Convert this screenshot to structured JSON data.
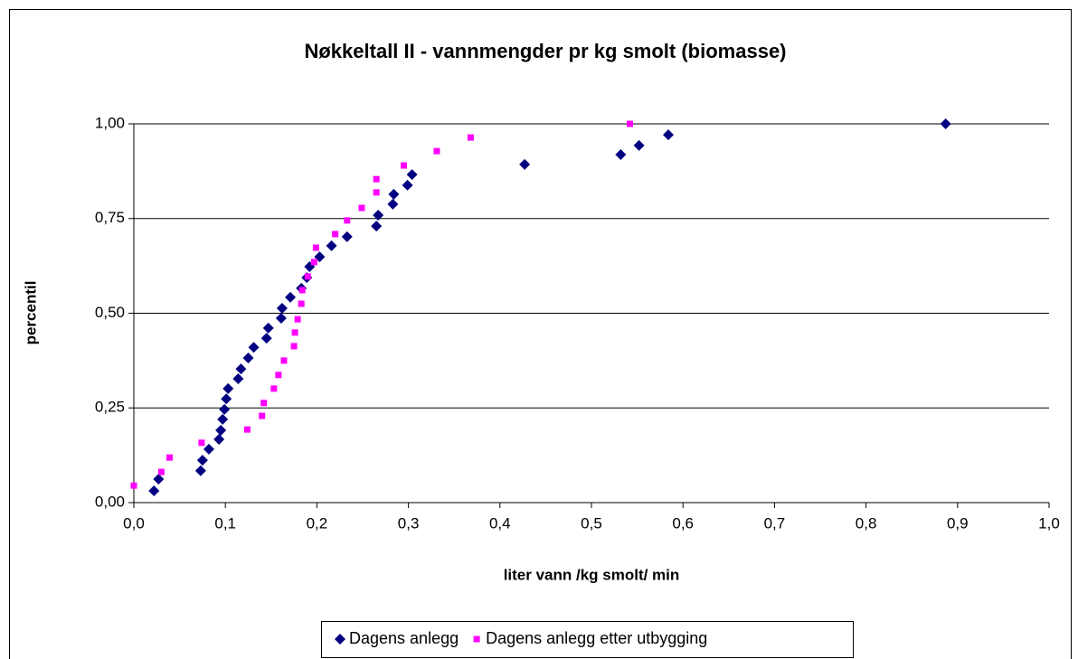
{
  "chart_data": {
    "type": "scatter",
    "title": "Nøkkeltall II - vannmengder pr kg smolt (biomasse)",
    "xlabel": "liter vann /kg smolt/ min",
    "ylabel": "percentil",
    "xlim": [
      0,
      1
    ],
    "ylim": [
      0,
      1
    ],
    "xticks": [
      {
        "value": 0,
        "label": "0,0"
      },
      {
        "value": 0.1,
        "label": "0,1"
      },
      {
        "value": 0.2,
        "label": "0,2"
      },
      {
        "value": 0.3,
        "label": "0,3"
      },
      {
        "value": 0.4,
        "label": "0,4"
      },
      {
        "value": 0.5,
        "label": "0,5"
      },
      {
        "value": 0.6,
        "label": "0,6"
      },
      {
        "value": 0.7,
        "label": "0,7"
      },
      {
        "value": 0.8,
        "label": "0,8"
      },
      {
        "value": 0.9,
        "label": "0,9"
      },
      {
        "value": 1,
        "label": "1,0"
      }
    ],
    "yticks": [
      {
        "value": 0,
        "label": "0,00"
      },
      {
        "value": 0.25,
        "label": "0,25"
      },
      {
        "value": 0.5,
        "label": "0,50"
      },
      {
        "value": 0.75,
        "label": "0,75"
      },
      {
        "value": 1,
        "label": "1,00"
      }
    ],
    "grid": true,
    "legend": "bottom",
    "series": [
      {
        "name": "Dagens anlegg",
        "color": "#000080",
        "marker": "diamond",
        "x": [
          0.022,
          0.027,
          0.073,
          0.075,
          0.082,
          0.093,
          0.095,
          0.097,
          0.099,
          0.101,
          0.103,
          0.114,
          0.117,
          0.125,
          0.131,
          0.145,
          0.147,
          0.161,
          0.162,
          0.171,
          0.183,
          0.189,
          0.192,
          0.203,
          0.216,
          0.233,
          0.265,
          0.267,
          0.283,
          0.284,
          0.299,
          0.304,
          0.427,
          0.532,
          0.552,
          0.584,
          0.887
        ],
        "values": [
          0.031,
          0.062,
          0.084,
          0.112,
          0.141,
          0.167,
          0.191,
          0.22,
          0.246,
          0.274,
          0.301,
          0.327,
          0.353,
          0.382,
          0.41,
          0.434,
          0.461,
          0.487,
          0.513,
          0.542,
          0.566,
          0.594,
          0.623,
          0.649,
          0.678,
          0.702,
          0.73,
          0.759,
          0.788,
          0.814,
          0.838,
          0.866,
          0.893,
          0.919,
          0.943,
          0.971,
          1.0
        ]
      },
      {
        "name": "Dagens anlegg etter utbygging",
        "color": "#ff00ff",
        "marker": "square",
        "x": [
          0.0,
          0.03,
          0.039,
          0.074,
          0.124,
          0.14,
          0.142,
          0.153,
          0.158,
          0.164,
          0.175,
          0.176,
          0.179,
          0.183,
          0.184,
          0.19,
          0.197,
          0.199,
          0.22,
          0.233,
          0.249,
          0.265,
          0.265,
          0.295,
          0.331,
          0.368,
          0.542
        ],
        "values": [
          0.045,
          0.081,
          0.119,
          0.158,
          0.193,
          0.229,
          0.263,
          0.301,
          0.337,
          0.375,
          0.413,
          0.449,
          0.484,
          0.525,
          0.561,
          0.597,
          0.635,
          0.673,
          0.709,
          0.745,
          0.778,
          0.819,
          0.854,
          0.89,
          0.928,
          0.964,
          1.0
        ]
      }
    ]
  }
}
